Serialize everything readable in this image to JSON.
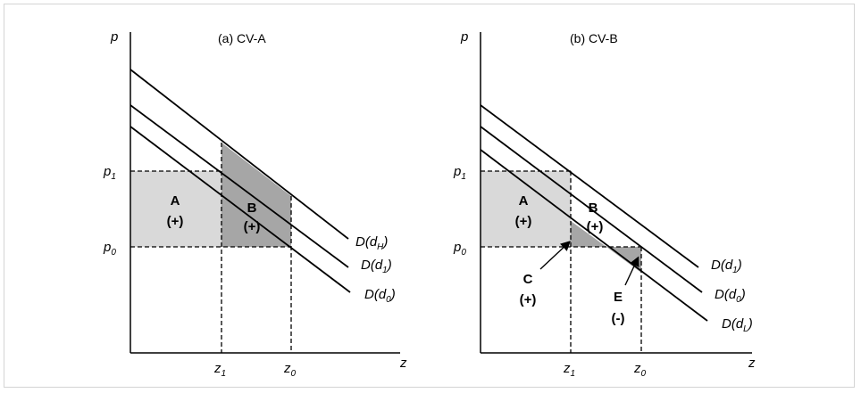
{
  "panel_a": {
    "title": "(a) CV-A",
    "y_axis": "p",
    "x_axis": "z",
    "price_high": {
      "base": "p",
      "sub": "1"
    },
    "price_low": {
      "base": "p",
      "sub": "0"
    },
    "qty_1": {
      "base": "z",
      "sub": "1"
    },
    "qty_0": {
      "base": "z",
      "sub": "0"
    },
    "area_a": {
      "letter": "A",
      "sign": "(+)"
    },
    "area_b": {
      "letter": "B",
      "sign": "(+)"
    },
    "curve_top": {
      "prefix": "D(d",
      "sub": "H",
      "suffix": ")"
    },
    "curve_mid": {
      "prefix": "D(d",
      "sub": "1",
      "suffix": ")"
    },
    "curve_bot": {
      "prefix": "D(d",
      "sub": "0",
      "suffix": ")"
    }
  },
  "panel_b": {
    "title": "(b) CV-B",
    "y_axis": "p",
    "x_axis": "z",
    "price_high": {
      "base": "p",
      "sub": "1"
    },
    "price_low": {
      "base": "p",
      "sub": "0"
    },
    "qty_1": {
      "base": "z",
      "sub": "1"
    },
    "qty_0": {
      "base": "z",
      "sub": "0"
    },
    "area_a": {
      "letter": "A",
      "sign": "(+)"
    },
    "area_b": {
      "letter": "B",
      "sign": "(+)"
    },
    "area_c": {
      "letter": "C",
      "sign": "(+)"
    },
    "area_e": {
      "letter": "E",
      "sign": "(-)"
    },
    "curve_top": {
      "prefix": "D(d",
      "sub": "1",
      "suffix": ")"
    },
    "curve_mid": {
      "prefix": "D(d",
      "sub": "0",
      "suffix": ")"
    },
    "curve_bot": {
      "prefix": "D(d",
      "sub": "L",
      "suffix": ")"
    }
  },
  "colors": {
    "light_fill": "#d9d9d9",
    "dark_fill": "#a6a6a6",
    "line": "#000000",
    "border": "#d4d4d4"
  }
}
